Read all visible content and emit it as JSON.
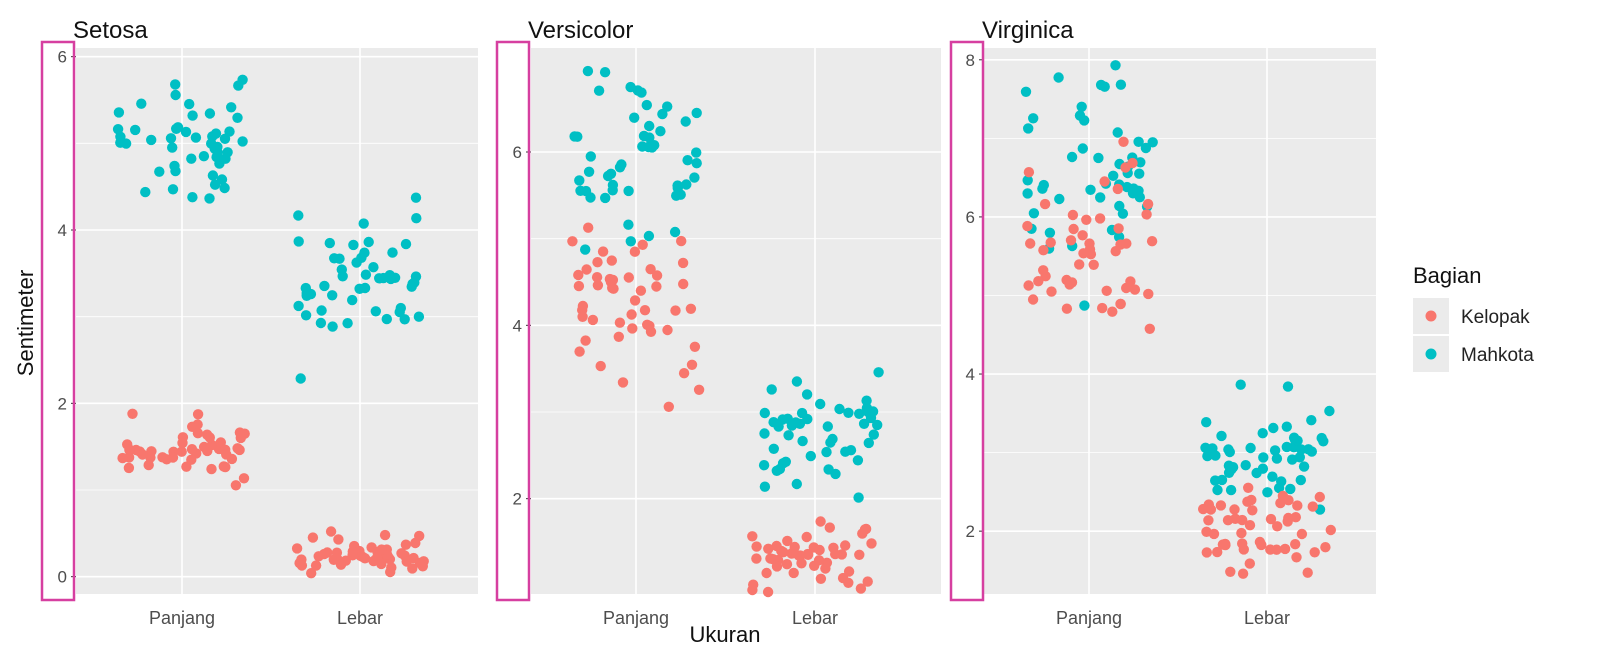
{
  "chart_data": {
    "type": "scatter",
    "ylabel": "Sentimeter",
    "xlabel": "Ukuran",
    "categories": [
      "Panjang",
      "Lebar"
    ],
    "colors": {
      "Kelopak": "#F8766D",
      "Mahkota": "#00BFC4",
      "highlight": "#D63FA0"
    },
    "legend": {
      "title": "Bagian",
      "position": "right",
      "items": [
        {
          "label": "Kelopak",
          "color": "#F8766D"
        },
        {
          "label": "Mahkota",
          "color": "#00BFC4"
        }
      ]
    },
    "facets": [
      {
        "title": "Setosa",
        "ylim": [
          -0.2,
          6.1
        ],
        "yticks": [
          0,
          2,
          4,
          6
        ],
        "tick_labels": [
          "0",
          "2",
          "4",
          "6"
        ],
        "series": [
          {
            "name": "Mahkota",
            "category": "Panjang",
            "values": [
              5.1,
              4.9,
              4.7,
              4.6,
              5.0,
              5.4,
              4.6,
              5.0,
              4.4,
              4.9,
              5.4,
              4.8,
              4.8,
              4.3,
              5.8,
              5.7,
              5.4,
              5.1,
              5.7,
              5.1,
              5.4,
              5.1,
              4.6,
              5.1,
              4.8,
              5.0,
              5.0,
              5.2,
              5.2,
              4.7,
              4.8,
              5.4,
              5.2,
              5.5,
              4.9,
              5.0,
              5.5,
              4.9,
              4.4,
              5.1,
              5.0,
              4.5,
              4.4,
              5.0,
              5.1,
              4.8,
              5.1,
              4.6,
              5.3,
              5.0
            ]
          },
          {
            "name": "Mahkota",
            "category": "Lebar",
            "values": [
              3.5,
              3.0,
              3.2,
              3.1,
              3.6,
              3.9,
              3.4,
              3.4,
              2.9,
              3.1,
              3.7,
              3.4,
              3.0,
              3.0,
              4.0,
              4.4,
              3.9,
              3.5,
              3.8,
              3.8,
              3.4,
              3.7,
              3.6,
              3.3,
              3.4,
              3.0,
              3.4,
              3.5,
              3.4,
              3.2,
              3.1,
              3.4,
              4.1,
              4.2,
              3.1,
              3.2,
              3.5,
              3.6,
              3.0,
              3.4,
              3.5,
              2.3,
              3.2,
              3.5,
              3.8,
              3.0,
              3.8,
              3.2,
              3.7,
              3.3
            ]
          },
          {
            "name": "Kelopak",
            "category": "Panjang",
            "values": [
              1.4,
              1.4,
              1.3,
              1.5,
              1.4,
              1.7,
              1.4,
              1.5,
              1.4,
              1.5,
              1.5,
              1.6,
              1.4,
              1.1,
              1.2,
              1.5,
              1.3,
              1.4,
              1.7,
              1.5,
              1.7,
              1.5,
              1.0,
              1.7,
              1.9,
              1.6,
              1.6,
              1.5,
              1.4,
              1.6,
              1.6,
              1.5,
              1.5,
              1.4,
              1.5,
              1.2,
              1.3,
              1.4,
              1.3,
              1.5,
              1.3,
              1.3,
              1.3,
              1.6,
              1.9,
              1.4,
              1.6,
              1.4,
              1.5,
              1.4
            ]
          },
          {
            "name": "Kelopak",
            "category": "Lebar",
            "values": [
              0.2,
              0.2,
              0.2,
              0.2,
              0.2,
              0.4,
              0.3,
              0.2,
              0.2,
              0.1,
              0.2,
              0.2,
              0.1,
              0.1,
              0.2,
              0.4,
              0.4,
              0.3,
              0.3,
              0.3,
              0.2,
              0.4,
              0.2,
              0.5,
              0.2,
              0.2,
              0.4,
              0.2,
              0.2,
              0.2,
              0.2,
              0.4,
              0.1,
              0.2,
              0.2,
              0.2,
              0.2,
              0.1,
              0.2,
              0.2,
              0.3,
              0.3,
              0.2,
              0.6,
              0.4,
              0.3,
              0.2,
              0.2,
              0.2,
              0.2
            ]
          }
        ]
      },
      {
        "title": "Versicolor",
        "ylim": [
          0.9,
          7.2
        ],
        "yticks": [
          2,
          4,
          6
        ],
        "tick_labels": [
          "2",
          "4",
          "6"
        ],
        "series": [
          {
            "name": "Mahkota",
            "category": "Panjang",
            "values": [
              7.0,
              6.4,
              6.9,
              5.5,
              6.5,
              5.7,
              6.3,
              4.9,
              6.6,
              5.2,
              5.0,
              5.9,
              6.0,
              6.1,
              5.6,
              6.7,
              5.6,
              5.8,
              6.2,
              5.6,
              5.9,
              6.1,
              6.3,
              6.1,
              6.4,
              6.6,
              6.8,
              6.7,
              6.0,
              5.7,
              5.5,
              5.5,
              5.8,
              6.0,
              5.4,
              6.0,
              6.7,
              6.3,
              5.6,
              5.5,
              5.5,
              6.1,
              5.8,
              5.0,
              5.6,
              5.7,
              5.7,
              6.2,
              5.1,
              5.7
            ]
          },
          {
            "name": "Mahkota",
            "category": "Lebar",
            "values": [
              3.2,
              3.2,
              3.1,
              2.3,
              2.8,
              2.8,
              3.3,
              2.4,
              2.9,
              2.7,
              2.0,
              3.0,
              2.2,
              2.9,
              2.9,
              3.1,
              3.0,
              2.7,
              2.2,
              2.5,
              3.2,
              2.8,
              2.5,
              2.8,
              2.9,
              3.0,
              2.8,
              3.0,
              2.9,
              2.6,
              2.4,
              2.4,
              2.7,
              2.7,
              3.0,
              3.4,
              3.1,
              2.3,
              3.0,
              2.5,
              2.6,
              3.0,
              2.6,
              2.3,
              2.7,
              3.0,
              2.9,
              2.9,
              2.5,
              2.8
            ]
          },
          {
            "name": "Kelopak",
            "category": "Panjang",
            "values": [
              4.7,
              4.5,
              4.9,
              4.0,
              4.6,
              4.5,
              4.7,
              3.3,
              4.6,
              3.9,
              3.5,
              4.2,
              4.0,
              4.7,
              3.6,
              4.4,
              4.5,
              4.1,
              4.5,
              3.9,
              4.8,
              4.0,
              4.9,
              4.7,
              4.3,
              4.4,
              4.8,
              5.0,
              4.5,
              3.5,
              3.8,
              3.7,
              3.9,
              5.1,
              4.5,
              4.5,
              4.7,
              4.4,
              4.1,
              4.0,
              4.4,
              4.6,
              4.0,
              3.3,
              4.2,
              4.2,
              4.2,
              4.3,
              3.0,
              4.1
            ]
          },
          {
            "name": "Kelopak",
            "category": "Lebar",
            "values": [
              1.4,
              1.5,
              1.5,
              1.3,
              1.5,
              1.3,
              1.6,
              1.0,
              1.3,
              1.4,
              1.0,
              1.5,
              1.0,
              1.4,
              1.3,
              1.4,
              1.5,
              1.0,
              1.5,
              1.1,
              1.8,
              1.3,
              1.5,
              1.2,
              1.3,
              1.4,
              1.4,
              1.7,
              1.5,
              1.0,
              1.1,
              1.0,
              1.2,
              1.6,
              1.5,
              1.6,
              1.5,
              1.3,
              1.3,
              1.3,
              1.2,
              1.4,
              1.2,
              1.0,
              1.3,
              1.2,
              1.3,
              1.3,
              1.1,
              1.3
            ]
          }
        ]
      },
      {
        "title": "Virginica",
        "ylim": [
          1.2,
          8.15
        ],
        "yticks": [
          2,
          4,
          6,
          8
        ],
        "tick_labels": [
          "2",
          "4",
          "6",
          "8"
        ],
        "series": [
          {
            "name": "Mahkota",
            "category": "Panjang",
            "values": [
              6.3,
              5.8,
              7.1,
              6.3,
              6.5,
              7.6,
              4.9,
              7.3,
              6.7,
              7.2,
              6.5,
              6.4,
              6.8,
              5.7,
              5.8,
              6.4,
              6.5,
              7.7,
              7.7,
              6.0,
              6.9,
              5.6,
              7.7,
              6.3,
              6.7,
              7.2,
              6.2,
              6.1,
              6.4,
              7.2,
              7.4,
              7.9,
              6.4,
              6.3,
              6.1,
              7.7,
              6.3,
              6.4,
              6.0,
              6.9,
              6.7,
              6.9,
              5.8,
              6.8,
              6.7,
              6.7,
              6.3,
              6.5,
              6.2,
              5.9
            ]
          },
          {
            "name": "Mahkota",
            "category": "Lebar",
            "values": [
              3.3,
              2.7,
              3.0,
              2.9,
              3.0,
              3.0,
              2.5,
              2.9,
              2.5,
              3.6,
              3.2,
              2.7,
              3.0,
              2.5,
              2.8,
              3.2,
              3.0,
              3.8,
              2.6,
              2.2,
              3.2,
              2.8,
              2.8,
              2.7,
              3.3,
              3.2,
              2.8,
              3.0,
              2.8,
              3.0,
              2.8,
              3.8,
              2.8,
              2.8,
              2.6,
              3.0,
              3.4,
              3.1,
              3.0,
              3.1,
              3.1,
              3.1,
              2.7,
              3.2,
              3.3,
              3.0,
              2.5,
              3.0,
              3.4,
              3.0
            ]
          },
          {
            "name": "Kelopak",
            "category": "Panjang",
            "values": [
              6.0,
              5.1,
              5.9,
              5.6,
              5.8,
              6.6,
              4.5,
              6.3,
              5.8,
              6.1,
              5.1,
              5.3,
              5.5,
              5.0,
              5.1,
              5.3,
              5.5,
              6.7,
              6.9,
              5.0,
              5.7,
              4.9,
              6.7,
              4.9,
              5.7,
              6.0,
              4.8,
              4.9,
              5.6,
              5.8,
              6.1,
              6.4,
              5.6,
              5.1,
              5.6,
              6.1,
              5.6,
              5.5,
              4.8,
              5.4,
              5.6,
              5.1,
              5.1,
              5.9,
              5.7,
              5.2,
              5.0,
              5.2,
              5.4,
              5.1
            ]
          },
          {
            "name": "Kelopak",
            "category": "Lebar",
            "values": [
              2.5,
              1.9,
              2.1,
              1.8,
              2.2,
              2.1,
              1.7,
              1.8,
              1.8,
              2.5,
              2.0,
              1.9,
              2.1,
              2.0,
              2.4,
              2.3,
              1.8,
              2.2,
              2.3,
              1.5,
              2.3,
              2.0,
              2.0,
              1.8,
              2.1,
              1.8,
              1.8,
              1.8,
              2.1,
              1.6,
              1.9,
              2.0,
              2.2,
              1.5,
              1.4,
              2.3,
              2.4,
              1.8,
              1.8,
              2.1,
              2.4,
              2.3,
              1.9,
              2.3,
              2.5,
              2.3,
              1.9,
              2.0,
              2.3,
              1.8
            ]
          }
        ]
      }
    ]
  }
}
